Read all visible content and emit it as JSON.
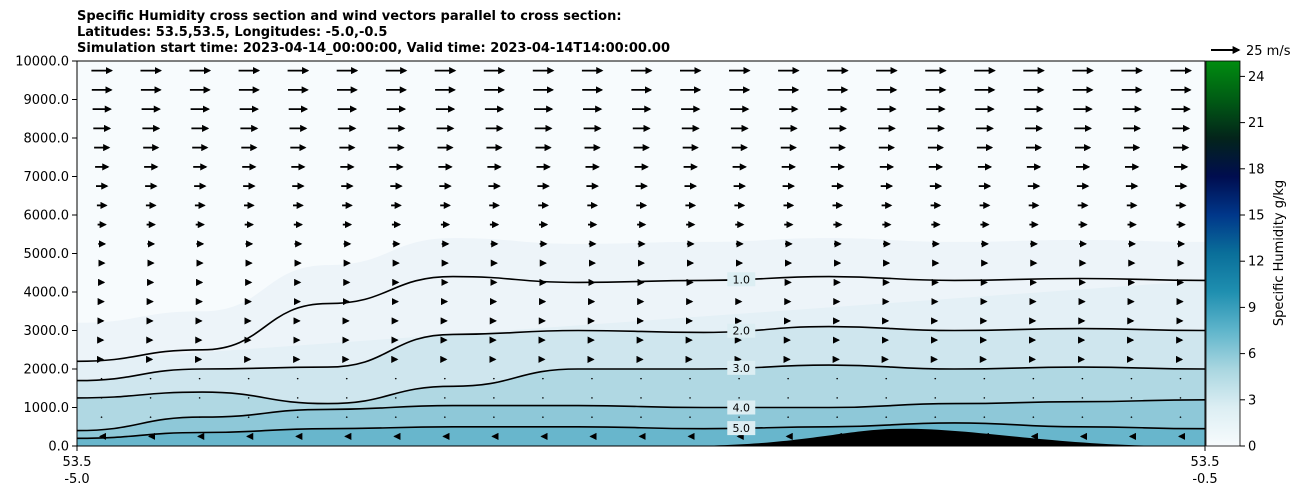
{
  "chart_data": {
    "type": "contourf",
    "title_lines": [
      "Specific Humidity cross section and wind vectors parallel to cross section:",
      "Latitudes: 53.5,53.5, Longitudes: -5.0,-0.5",
      "Simulation start time: 2023-04-14_00:00:00, Valid time: 2023-04-14T14:00:00.00"
    ],
    "x_ticks": [
      {
        "lat": "53.5",
        "lon": "-5.0"
      },
      {
        "lat": "53.5",
        "lon": "-0.5"
      }
    ],
    "x_range": [
      -5.0,
      -0.5
    ],
    "y_range": [
      0,
      10000
    ],
    "y_ticks": [
      "0.0",
      "1000.0",
      "2000.0",
      "3000.0",
      "4000.0",
      "5000.0",
      "6000.0",
      "7000.0",
      "8000.0",
      "9000.0",
      "10000.0"
    ],
    "colorbar": {
      "label": "Specific Humidity g/kg",
      "range": [
        0,
        25
      ],
      "ticks": [
        "0",
        "3",
        "6",
        "9",
        "12",
        "15",
        "18",
        "21",
        "24"
      ],
      "colors": [
        "#f7fbfd",
        "#dceef3",
        "#a9d6e0",
        "#5fb5cb",
        "#1f8fb0",
        "#0a6f9a",
        "#00378a",
        "#000d4f",
        "#03241a",
        "#005c14",
        "#008c10"
      ]
    },
    "quiver_key": {
      "label": "25 m/s",
      "speed": 25
    },
    "contour_lines": [
      {
        "label": "1.0",
        "heights": [
          2200,
          2500,
          3700,
          4400,
          4250,
          4300,
          4400,
          4300,
          4350,
          4300
        ]
      },
      {
        "label": "2.0",
        "heights": [
          1700,
          2000,
          2050,
          2900,
          3000,
          2950,
          3100,
          3000,
          3050,
          3000
        ]
      },
      {
        "label": "3.0",
        "heights": [
          1250,
          1400,
          1100,
          1550,
          2000,
          2000,
          2100,
          2000,
          2050,
          2000
        ]
      },
      {
        "label": "4.0",
        "heights": [
          400,
          750,
          950,
          1050,
          1050,
          1000,
          1000,
          1100,
          1150,
          1200
        ]
      },
      {
        "label": "5.0",
        "heights": [
          200,
          350,
          450,
          500,
          500,
          450,
          500,
          600,
          500,
          450
        ]
      }
    ],
    "terrain": {
      "peak_x": -1.7,
      "peak_height": 450
    },
    "wind_profile": [
      {
        "height": 9500,
        "u": 18
      },
      {
        "height": 8000,
        "u": 14
      },
      {
        "height": 6500,
        "u": 9
      },
      {
        "height": 5000,
        "u": 5
      },
      {
        "height": 3500,
        "u": 3
      },
      {
        "height": 2000,
        "u": 2
      },
      {
        "height": 500,
        "u": -2
      }
    ]
  }
}
